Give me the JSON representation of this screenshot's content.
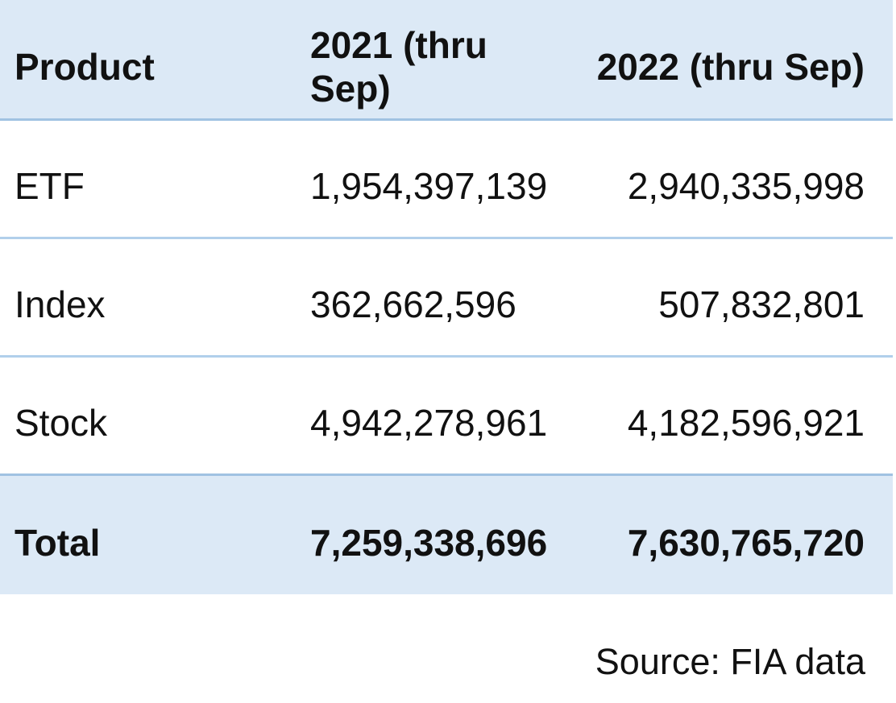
{
  "colors": {
    "page_bg": "#ffffff",
    "band_bg": "#dce9f6",
    "strong_border": "#a0c2e2",
    "row_border": "#b1cfeb",
    "text": "#111111"
  },
  "table": {
    "columns": [
      {
        "label": "Product"
      },
      {
        "label": "2021 (thru Sep)"
      },
      {
        "label": "2022 (thru Sep)"
      }
    ],
    "rows": [
      {
        "cells": [
          "ETF",
          "1,954,397,139",
          "2,940,335,998"
        ]
      },
      {
        "cells": [
          "Index",
          "362,662,596",
          "507,832,801"
        ]
      },
      {
        "cells": [
          "Stock",
          "4,942,278,961",
          "4,182,596,921"
        ]
      }
    ],
    "total_row": {
      "cells": [
        "Total",
        "7,259,338,696",
        "7,630,765,720"
      ]
    },
    "source_note": "Source: FIA data"
  },
  "chart_data": {
    "type": "table",
    "columns": [
      "Product",
      "2021 (thru Sep)",
      "2022 (thru Sep)"
    ],
    "rows": [
      [
        "ETF",
        1954397139,
        2940335998
      ],
      [
        "Index",
        362662596,
        507832801
      ],
      [
        "Stock",
        4942278961,
        4182596921
      ],
      [
        "Total",
        7259338696,
        7630765720
      ]
    ],
    "source": "Source: FIA data",
    "layout": {
      "header_highlight": true,
      "total_highlight": true,
      "value_alignment": {
        "col_2021": "left",
        "col_2022": "right"
      }
    }
  }
}
